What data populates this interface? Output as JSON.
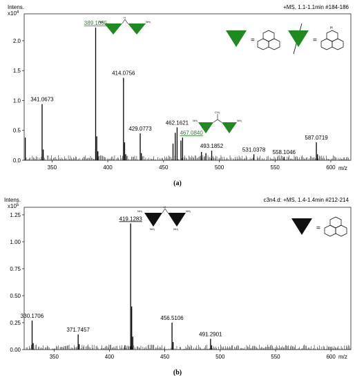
{
  "chart_data": [
    {
      "type": "line",
      "panel_label": "(a)",
      "y_title": "Intens.",
      "y_multiplier": "x10",
      "y_exponent": "4",
      "header": "+MS, 1.1-1.1min #184-186",
      "xlabel": "m/z",
      "xlim": [
        325,
        618
      ],
      "ylim": [
        0,
        2.45
      ],
      "x_ticks": [
        350,
        400,
        450,
        500,
        550,
        600
      ],
      "y_ticks": [
        0.0,
        0.5,
        1.0,
        1.5,
        2.0
      ],
      "y_tick_labels": [
        "0.0",
        "0.5",
        "1.0",
        "1.5",
        "2.0"
      ],
      "peaks": [
        {
          "x": 326,
          "y": 0.38
        },
        {
          "x": 341.07,
          "y": 0.94
        },
        {
          "x": 342.1,
          "y": 0.18
        },
        {
          "x": 389.11,
          "y": 2.22
        },
        {
          "x": 390.1,
          "y": 0.4
        },
        {
          "x": 391.1,
          "y": 0.15
        },
        {
          "x": 414.08,
          "y": 1.38
        },
        {
          "x": 415.1,
          "y": 0.3
        },
        {
          "x": 416.1,
          "y": 0.1
        },
        {
          "x": 429.08,
          "y": 0.45
        },
        {
          "x": 430.1,
          "y": 0.12
        },
        {
          "x": 458.5,
          "y": 0.28
        },
        {
          "x": 460.5,
          "y": 0.46
        },
        {
          "x": 462.16,
          "y": 0.55
        },
        {
          "x": 465.6,
          "y": 0.33
        },
        {
          "x": 467.08,
          "y": 0.38
        },
        {
          "x": 484,
          "y": 0.14
        },
        {
          "x": 488,
          "y": 0.12
        },
        {
          "x": 493.19,
          "y": 0.16
        },
        {
          "x": 531.04,
          "y": 0.1
        },
        {
          "x": 558.1,
          "y": 0.06
        },
        {
          "x": 587.07,
          "y": 0.3
        },
        {
          "x": 588.1,
          "y": 0.1
        }
      ],
      "labels": [
        {
          "text": "341.0673",
          "x": 341.07,
          "y": 0.94,
          "color": "#000000",
          "underline": false
        },
        {
          "text": "389.1065",
          "x": 389.11,
          "y": 2.22,
          "color": "#2e7d32",
          "underline": true
        },
        {
          "text": "414.0756",
          "x": 414.08,
          "y": 1.38,
          "color": "#000000",
          "underline": false
        },
        {
          "text": "429.0773",
          "x": 429.08,
          "y": 0.45,
          "color": "#000000",
          "underline": false
        },
        {
          "text": "462.1621",
          "x": 462.16,
          "y": 0.55,
          "color": "#000000",
          "underline": false
        },
        {
          "text": "467.0840",
          "x": 475,
          "y": 0.38,
          "color": "#2e7d32",
          "underline": true
        },
        {
          "text": "493.1852",
          "x": 493.19,
          "y": 0.16,
          "color": "#000000",
          "underline": false
        },
        {
          "text": "531.0378",
          "x": 531.04,
          "y": 0.1,
          "color": "#000000",
          "underline": false
        },
        {
          "text": "558.1046",
          "x": 558.1,
          "y": 0.06,
          "color": "#000000",
          "underline": false
        },
        {
          "text": "587.0719",
          "x": 587.07,
          "y": 0.3,
          "color": "#000000",
          "underline": false
        }
      ],
      "triangle_color": "#1f8a1f",
      "legend_equals": "="
    },
    {
      "type": "line",
      "panel_label": "(b)",
      "y_title": "Intens.",
      "y_multiplier": "x10",
      "y_exponent": "5",
      "header": "c3n4.d: +MS, 1.4-1.4min #212-214",
      "xlabel": "m/z",
      "xlim": [
        323,
        618
      ],
      "ylim": [
        0,
        1.32
      ],
      "x_ticks": [
        350,
        400,
        450,
        500,
        550,
        600
      ],
      "y_ticks": [
        0.0,
        0.25,
        0.5,
        0.75,
        1.0,
        1.25
      ],
      "y_tick_labels": [
        "0.00",
        "0.25",
        "0.50",
        "0.75",
        "1.00",
        "1.25"
      ],
      "peaks": [
        {
          "x": 330.17,
          "y": 0.27
        },
        {
          "x": 331.2,
          "y": 0.06
        },
        {
          "x": 371.75,
          "y": 0.14
        },
        {
          "x": 372.7,
          "y": 0.05
        },
        {
          "x": 414,
          "y": 0.04
        },
        {
          "x": 419.13,
          "y": 1.17
        },
        {
          "x": 420.1,
          "y": 0.4
        },
        {
          "x": 421.1,
          "y": 0.12
        },
        {
          "x": 456.51,
          "y": 0.25
        },
        {
          "x": 457.5,
          "y": 0.07
        },
        {
          "x": 491.29,
          "y": 0.1
        },
        {
          "x": 492.3,
          "y": 0.04
        }
      ],
      "labels": [
        {
          "text": "330.1706",
          "x": 330.17,
          "y": 0.27,
          "color": "#000000",
          "underline": false
        },
        {
          "text": "371.7457",
          "x": 371.75,
          "y": 0.14,
          "color": "#000000",
          "underline": false
        },
        {
          "text": "419.1283",
          "x": 419.13,
          "y": 1.17,
          "color": "#000000",
          "underline": true
        },
        {
          "text": "456.5106",
          "x": 456.51,
          "y": 0.25,
          "color": "#000000",
          "underline": false
        },
        {
          "text": "491.2901",
          "x": 491.29,
          "y": 0.1,
          "color": "#000000",
          "underline": false
        }
      ],
      "triangle_color": "#111111",
      "legend_equals": "="
    }
  ],
  "structure_labels": {
    "nh": "H",
    "nh2": "NH₂",
    "ch3": "CH₃",
    "n": "N"
  }
}
